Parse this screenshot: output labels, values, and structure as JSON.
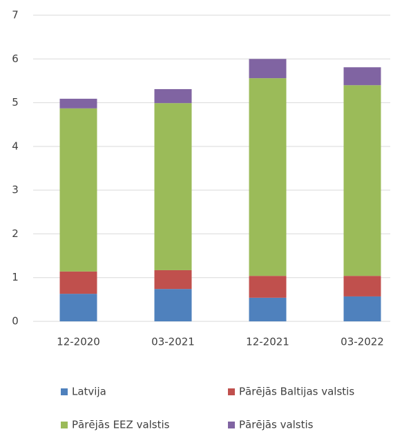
{
  "chart_data": {
    "type": "stacked_bar",
    "categories": [
      "12-2020",
      "03-2021",
      "12-2021",
      "03-2022"
    ],
    "series": [
      {
        "name": "Latvija",
        "color": "#4f81bd",
        "values": [
          0.63,
          0.74,
          0.54,
          0.57
        ]
      },
      {
        "name": "Pārējās Baltijas valstis",
        "color": "#c0504d",
        "values": [
          0.51,
          0.43,
          0.5,
          0.47
        ]
      },
      {
        "name": "Pārējās EEZ valstis",
        "color": "#9bbb59",
        "values": [
          3.73,
          3.82,
          4.52,
          4.36
        ]
      },
      {
        "name": "Pārējās valstis",
        "color": "#8064a2",
        "values": [
          0.22,
          0.32,
          0.44,
          0.41
        ]
      }
    ],
    "ylim": [
      0,
      7
    ],
    "yticks": [
      0,
      1,
      2,
      3,
      4,
      5,
      6,
      7
    ],
    "grid": true
  }
}
